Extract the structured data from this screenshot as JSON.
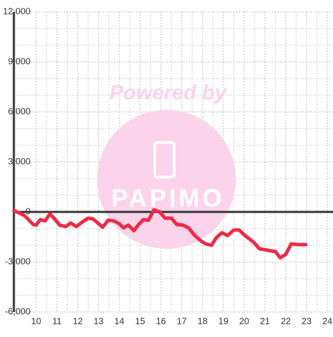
{
  "chart_data": {
    "type": "line",
    "watermark": {
      "line1": "Powered by",
      "line2": "PAPIMO"
    },
    "xlim": [
      8.93,
      24.27
    ],
    "ylim": [
      -6000,
      12000
    ],
    "xticks": [
      10,
      11,
      12,
      13,
      14,
      15,
      16,
      17,
      18,
      19,
      20,
      21,
      22,
      23,
      24
    ],
    "yticks": [
      {
        "value": -6000,
        "label": "-6,000"
      },
      {
        "value": -3000,
        "label": "-3,000"
      },
      0,
      {
        "value": 3000,
        "label": "3,000"
      },
      {
        "value": 6000,
        "label": "6,000"
      },
      {
        "value": 9000,
        "label": "9,000"
      },
      {
        "value": 12000,
        "label": "12,000"
      }
    ],
    "grid": true,
    "series": [
      {
        "color": "#ee2a45",
        "x": [
          8.93,
          9.43,
          9.86,
          10.0,
          10.2,
          10.43,
          10.66,
          10.86,
          11.13,
          11.43,
          11.66,
          11.93,
          12.2,
          12.5,
          12.73,
          12.93,
          13.2,
          13.46,
          13.76,
          13.99,
          14.2,
          14.43,
          14.7,
          14.93,
          15.16,
          15.4,
          15.66,
          15.93,
          16.2,
          16.5,
          16.76,
          17.06,
          17.33,
          17.6,
          17.93,
          18.16,
          18.43,
          18.66,
          18.93,
          19.2,
          19.5,
          19.76,
          20.0,
          20.26,
          20.5,
          20.73,
          21.1,
          21.5,
          21.73,
          22.0,
          22.26,
          22.6,
          22.96
        ],
        "values": [
          83,
          -208,
          -750,
          -792,
          -458,
          -542,
          -125,
          -375,
          -792,
          -875,
          -667,
          -875,
          -625,
          -375,
          -417,
          -625,
          -917,
          -500,
          -542,
          -708,
          -958,
          -792,
          -1125,
          -750,
          -458,
          -500,
          125,
          0,
          -375,
          -375,
          -750,
          -792,
          -958,
          -1375,
          -1750,
          -1917,
          -2000,
          -1542,
          -1250,
          -1417,
          -1083,
          -1083,
          -1375,
          -1625,
          -1875,
          -2208,
          -2292,
          -2375,
          -2750,
          -2542,
          -1917,
          -1958,
          -1958
        ]
      }
    ]
  }
}
